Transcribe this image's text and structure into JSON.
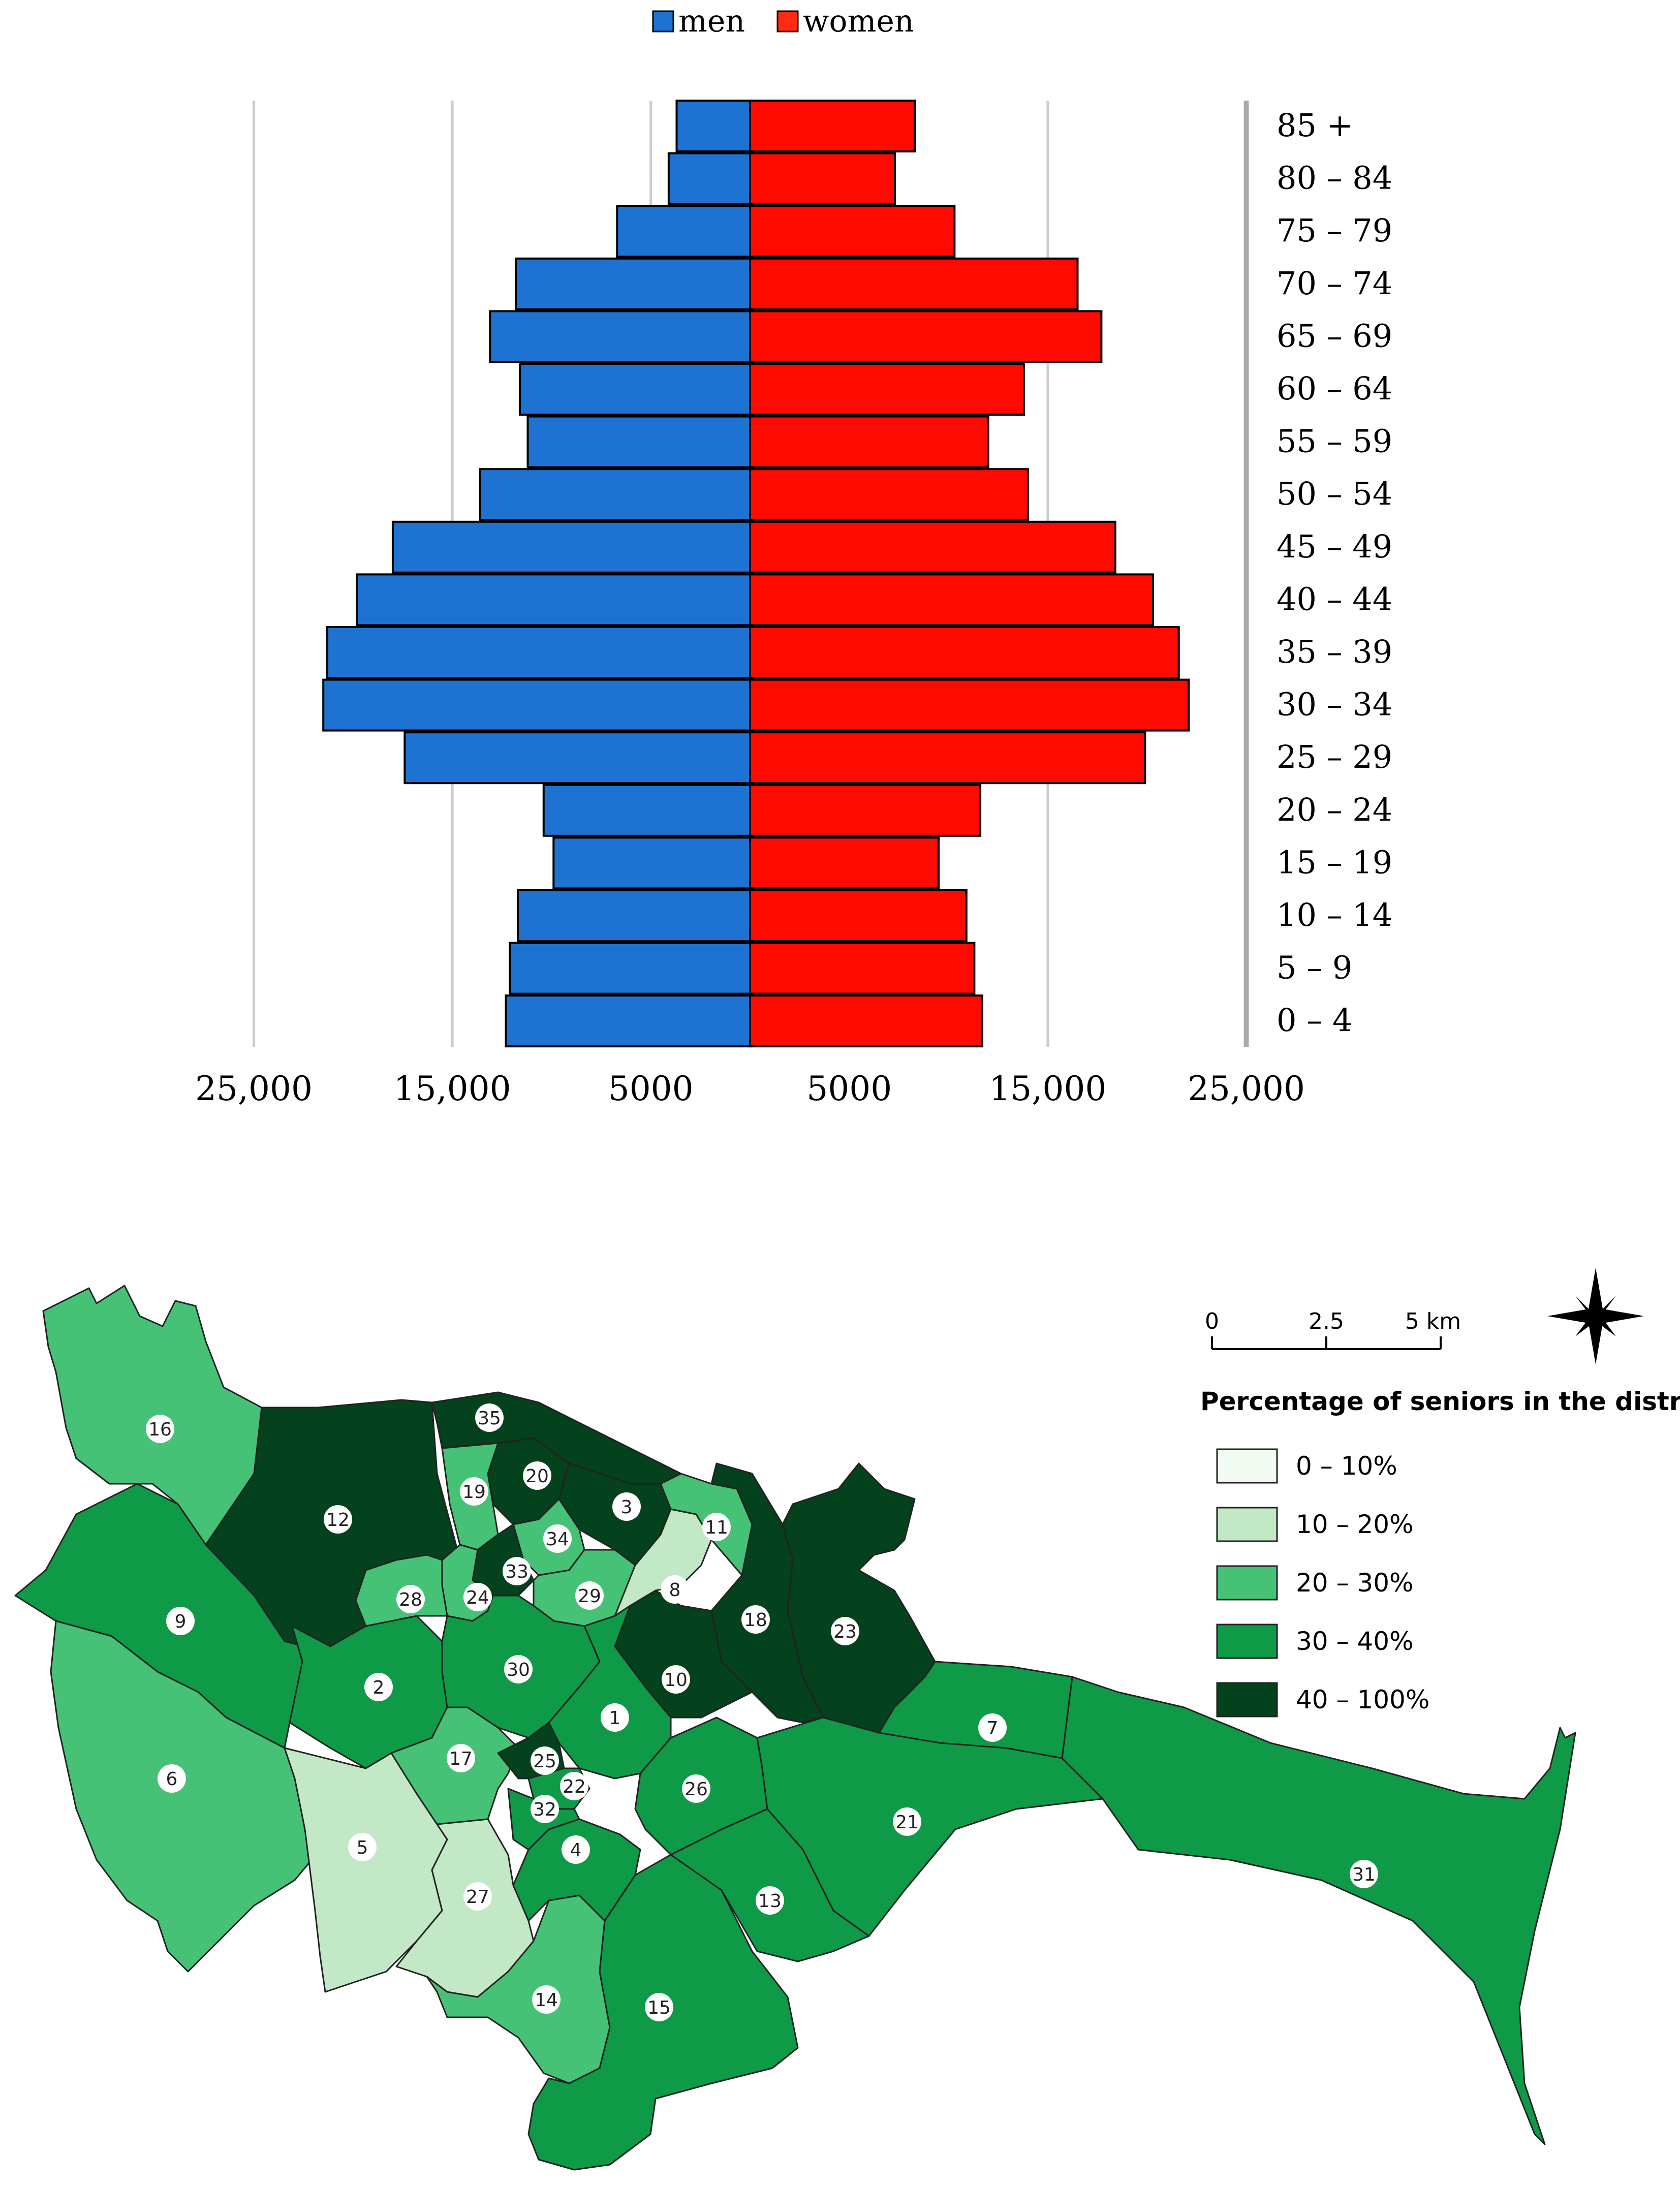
{
  "chart_data": [
    {
      "type": "bar",
      "subtype": "population-pyramid",
      "title": "",
      "xlabel": "",
      "ylabel": "",
      "legend": {
        "position": "top-center",
        "entries": [
          "men",
          "women"
        ]
      },
      "colors": {
        "men": "#1E73D2",
        "women": "#FF0A00"
      },
      "grid": true,
      "xlim": [
        -25000,
        25000
      ],
      "x_tick_labels": [
        "25,000",
        "15,000",
        "5000",
        "5000",
        "15,000",
        "25,000"
      ],
      "x_tick_values": [
        -25000,
        -15000,
        -5000,
        5000,
        15000,
        25000
      ],
      "categories": [
        "85 +",
        "80 – 84",
        "75 – 79",
        "70 – 74",
        "65 – 69",
        "60 – 64",
        "55 – 59",
        "50 – 54",
        "45 – 49",
        "40 – 44",
        "35 – 39",
        "30 – 34",
        "25 – 29",
        "20 – 24",
        "15 – 19",
        "10 – 14",
        "5 – 9",
        "0 – 4"
      ],
      "series": [
        {
          "name": "men",
          "values": [
            3700,
            4100,
            6700,
            11800,
            13100,
            11600,
            11200,
            13600,
            18000,
            19800,
            21300,
            21500,
            17400,
            10400,
            9900,
            11700,
            12100,
            12300
          ]
        },
        {
          "name": "women",
          "values": [
            8300,
            7300,
            10300,
            16500,
            17700,
            13800,
            12000,
            14000,
            18400,
            20300,
            21600,
            22100,
            19900,
            11600,
            9500,
            10900,
            11300,
            11700
          ]
        }
      ]
    },
    {
      "type": "choropleth",
      "title": "Percentage of seniors in the district",
      "scale": {
        "labels": [
          "0",
          "2.5",
          "5 km"
        ]
      },
      "north_arrow": "compass-star-icon",
      "classes": [
        {
          "label": "0 – 10%",
          "color": "#F2FBF1"
        },
        {
          "label": "10 – 20%",
          "color": "#C2E8C6"
        },
        {
          "label": "20 – 30%",
          "color": "#46C277"
        },
        {
          "label": "30 – 40%",
          "color": "#0E9A46"
        },
        {
          "label": "40 – 100%",
          "color": "#03421C"
        }
      ],
      "districts": [
        {
          "id": "1",
          "class": 3
        },
        {
          "id": "2",
          "class": 3
        },
        {
          "id": "3",
          "class": 4
        },
        {
          "id": "4",
          "class": 3
        },
        {
          "id": "5",
          "class": 1
        },
        {
          "id": "6",
          "class": 2
        },
        {
          "id": "7",
          "class": 3
        },
        {
          "id": "8",
          "class": 1
        },
        {
          "id": "9",
          "class": 3
        },
        {
          "id": "10",
          "class": 4
        },
        {
          "id": "11",
          "class": 2
        },
        {
          "id": "12",
          "class": 4
        },
        {
          "id": "13",
          "class": 3
        },
        {
          "id": "14",
          "class": 2
        },
        {
          "id": "15",
          "class": 3
        },
        {
          "id": "16",
          "class": 2
        },
        {
          "id": "17",
          "class": 2
        },
        {
          "id": "18",
          "class": 4
        },
        {
          "id": "19",
          "class": 2
        },
        {
          "id": "20",
          "class": 4
        },
        {
          "id": "21",
          "class": 3
        },
        {
          "id": "22",
          "class": 3
        },
        {
          "id": "23",
          "class": 4
        },
        {
          "id": "24",
          "class": 2
        },
        {
          "id": "25",
          "class": 4
        },
        {
          "id": "26",
          "class": 3
        },
        {
          "id": "27",
          "class": 1
        },
        {
          "id": "28",
          "class": 2
        },
        {
          "id": "29",
          "class": 2
        },
        {
          "id": "30",
          "class": 3
        },
        {
          "id": "31",
          "class": 3
        },
        {
          "id": "32",
          "class": 3
        },
        {
          "id": "33",
          "class": 4
        },
        {
          "id": "34",
          "class": 2
        },
        {
          "id": "35",
          "class": 4
        }
      ]
    }
  ]
}
